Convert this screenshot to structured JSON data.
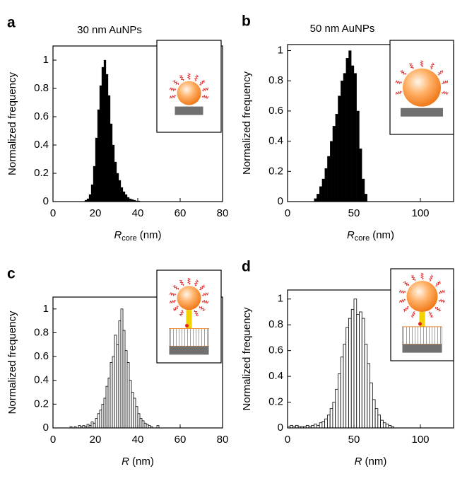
{
  "chart_data": [
    {
      "type": "histogram",
      "panel": "a",
      "title": "30 nm AuNPs",
      "xlabel": {
        "symbol": "R",
        "subscript": "core",
        "unit": "(nm)"
      },
      "ylabel": "Normalized frequency",
      "bins": [
        15,
        16,
        17,
        18,
        19,
        20,
        21,
        22,
        23,
        24,
        25,
        26,
        27,
        28,
        29,
        30,
        31,
        32,
        33,
        34,
        35,
        36,
        37,
        38,
        39,
        40,
        41
      ],
      "values": [
        0.01,
        0.02,
        0.05,
        0.12,
        0.25,
        0.45,
        0.65,
        0.82,
        0.95,
        1.0,
        0.9,
        0.75,
        0.55,
        0.4,
        0.28,
        0.2,
        0.15,
        0.1,
        0.07,
        0.05,
        0.03,
        0.02,
        0.015,
        0.01,
        0.005,
        0.005
      ],
      "color": "#000000",
      "edgecolor": "#000000",
      "xlim": [
        0,
        80
      ],
      "xticks": [
        0,
        20,
        40,
        60,
        80
      ],
      "ylim": [
        0,
        1.1
      ],
      "yticks": [
        0,
        0.2,
        0.4,
        0.6,
        0.8,
        1
      ]
    },
    {
      "type": "histogram",
      "panel": "b",
      "title": "50 nm AuNPs",
      "xlabel": {
        "symbol": "R",
        "subscript": "core",
        "unit": "(nm)"
      },
      "ylabel": "Normalized frequency",
      "bins": [
        20,
        22,
        24,
        26,
        28,
        30,
        32,
        34,
        36,
        38,
        40,
        42,
        44,
        46,
        48,
        50,
        52,
        54,
        56,
        58,
        60
      ],
      "values": [
        0.02,
        0.05,
        0.1,
        0.15,
        0.22,
        0.3,
        0.4,
        0.5,
        0.58,
        0.7,
        0.8,
        0.85,
        0.95,
        1.0,
        0.9,
        0.85,
        0.6,
        0.35,
        0.15,
        0.05
      ],
      "color": "#000000",
      "edgecolor": "#000000",
      "xlim": [
        0,
        125
      ],
      "xticks": [
        0,
        50,
        100
      ],
      "ylim": [
        0,
        1.04
      ],
      "yticks": [
        0,
        0.2,
        0.4,
        0.6,
        0.8,
        1
      ]
    },
    {
      "type": "histogram",
      "panel": "c",
      "xlabel": {
        "symbol": "R",
        "unit": "(nm)"
      },
      "ylabel": "Normalized frequency",
      "bins": [
        8,
        9,
        10,
        11,
        12,
        13,
        14,
        15,
        16,
        17,
        18,
        19,
        20,
        21,
        22,
        23,
        24,
        25,
        26,
        27,
        28,
        29,
        30,
        31,
        32,
        33,
        34,
        35,
        36,
        37,
        38,
        39,
        40,
        41,
        42,
        43,
        44,
        45,
        46,
        47,
        48,
        49,
        50
      ],
      "values": [
        0.01,
        0,
        0.01,
        0,
        0.02,
        0.01,
        0.02,
        0.01,
        0.03,
        0.02,
        0.05,
        0.04,
        0.08,
        0.12,
        0.15,
        0.2,
        0.25,
        0.35,
        0.42,
        0.55,
        0.6,
        0.78,
        0.7,
        0.9,
        1.0,
        0.82,
        0.65,
        0.55,
        0.4,
        0.3,
        0.25,
        0.18,
        0.12,
        0.08,
        0.06,
        0.04,
        0.03,
        0.02,
        0.01,
        0,
        0,
        0.02
      ],
      "color": "#ffffff",
      "edgecolor": "#000000",
      "xlim": [
        0,
        80
      ],
      "xticks": [
        0,
        20,
        40,
        60,
        80
      ],
      "ylim": [
        0,
        1.1
      ],
      "yticks": [
        0,
        0.2,
        0.4,
        0.6,
        0.8,
        1
      ]
    },
    {
      "type": "histogram",
      "panel": "d",
      "xlabel": {
        "symbol": "R",
        "unit": "(nm)"
      },
      "ylabel": "Normalized frequency",
      "bins": [
        0,
        2,
        4,
        6,
        8,
        10,
        12,
        14,
        16,
        18,
        20,
        22,
        24,
        26,
        28,
        30,
        32,
        34,
        36,
        38,
        40,
        42,
        44,
        46,
        48,
        50,
        52,
        54,
        56,
        58,
        60,
        62,
        64,
        66,
        68,
        70,
        72,
        74,
        76,
        78,
        80
      ],
      "values": [
        0.01,
        0.02,
        0.01,
        0.02,
        0.01,
        0.01,
        0.01,
        0.02,
        0.01,
        0.02,
        0.03,
        0.02,
        0.04,
        0.05,
        0.07,
        0.1,
        0.15,
        0.2,
        0.3,
        0.42,
        0.55,
        0.65,
        0.78,
        0.85,
        0.92,
        1.0,
        0.88,
        0.9,
        0.85,
        0.65,
        0.5,
        0.35,
        0.22,
        0.15,
        0.1,
        0.06,
        0.04,
        0.03,
        0.02,
        0.01
      ],
      "color": "#ffffff",
      "edgecolor": "#000000",
      "xlim": [
        0,
        125
      ],
      "xticks": [
        0,
        50,
        100
      ],
      "ylim": [
        0,
        1.07
      ],
      "yticks": [
        0,
        0.2,
        0.4,
        0.6,
        0.8,
        1
      ]
    }
  ]
}
